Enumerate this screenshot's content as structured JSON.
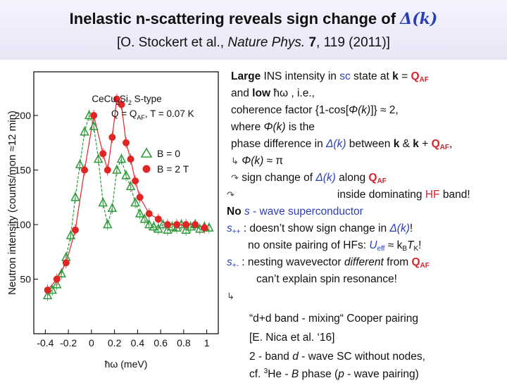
{
  "header": {
    "title_main": "Inelastic n-scattering reveals sign change of ",
    "title_delta": "Δ",
    "title_paren_open": "(",
    "title_k": "k",
    "title_paren_close": ")",
    "subtitle_pre": "[O. Stockert et al., ",
    "subtitle_journal": "Nature Phys.",
    "subtitle_volume": "7",
    "subtitle_post": ", 119 (2011)]"
  },
  "chart_data": {
    "type": "scatter",
    "title": "CeCu2Si2 S-type",
    "subtitle": "Q = QAF, T = 0.07 K",
    "legend_line1": "CeCu",
    "legend_sub1": "2",
    "legend_line2": "Si",
    "legend_sub2": "2",
    "legend_line3": " S-type",
    "legend_q": "Q = Q",
    "legend_af": "AF",
    "legend_t": ", T = 0.07 K",
    "xlabel": "ħω (meV)",
    "ylabel": "Neutron intensity (counts/mon ≈12 min)",
    "xlim": [
      -0.5,
      1.1
    ],
    "ylim": [
      0,
      240
    ],
    "xticks": [
      -0.4,
      -0.2,
      0,
      0.2,
      0.4,
      0.6,
      0.8,
      1
    ],
    "xtick_labels": [
      "-0.4",
      "-0.2",
      "0",
      "0.2",
      "0.4",
      "0.6",
      "0.8",
      "1"
    ],
    "yticks": [
      50,
      100,
      150,
      200
    ],
    "ytick_labels": [
      "50",
      "100",
      "150",
      "200"
    ],
    "series": [
      {
        "name": "B = 0",
        "marker": "triangle",
        "color": "#2e9a3b",
        "x": [
          -0.38,
          -0.34,
          -0.3,
          -0.26,
          -0.22,
          -0.18,
          -0.14,
          -0.1,
          -0.06,
          -0.02,
          0.02,
          0.06,
          0.1,
          0.14,
          0.18,
          0.22,
          0.26,
          0.3,
          0.34,
          0.38,
          0.42,
          0.46,
          0.5,
          0.54,
          0.58,
          0.62,
          0.66,
          0.7,
          0.74,
          0.78,
          0.82,
          0.86,
          0.9,
          0.94,
          0.98,
          1.02
        ],
        "y": [
          35,
          40,
          45,
          55,
          70,
          90,
          125,
          155,
          185,
          200,
          190,
          160,
          120,
          100,
          115,
          150,
          160,
          145,
          135,
          120,
          110,
          105,
          100,
          98,
          96,
          100,
          95,
          98,
          97,
          100,
          95,
          98,
          100,
          96,
          98,
          97
        ]
      },
      {
        "name": "B = 2 T",
        "marker": "circle",
        "color": "#e02525",
        "x": [
          -0.38,
          -0.3,
          -0.22,
          -0.14,
          -0.06,
          0.02,
          0.1,
          0.14,
          0.18,
          0.22,
          0.26,
          0.3,
          0.34,
          0.38,
          0.42,
          0.5,
          0.58,
          0.66,
          0.74,
          0.82,
          0.9,
          0.98
        ],
        "y": [
          40,
          50,
          65,
          95,
          150,
          200,
          165,
          150,
          180,
          215,
          210,
          175,
          160,
          140,
          125,
          110,
          105,
          100,
          100,
          100,
          100,
          97
        ]
      }
    ]
  },
  "text": {
    "l1_large": "Large",
    "l1_a": " INS intensity in ",
    "l1_sc": "sc",
    "l1_b": " state at ",
    "l1_k": "k",
    "l1_c": " = ",
    "l1_q": "Q",
    "l1_af": "AF",
    "l2_a": "and ",
    "l2_low": "low",
    "l2_b": " ħω , i.e.,",
    "l3_a": "coherence factor {1-cos[",
    "l3_phi": "Φ(k)",
    "l3_b": "]} ≈ 2,",
    "l4_a": "where ",
    "l4_phi": "Φ(k)",
    "l4_b": " is the",
    "l5_a": "phase difference in ",
    "l5_d": "Δ(k)",
    "l5_b": " between ",
    "l5_k1": "k",
    "l5_c": " & ",
    "l5_k2": "k",
    "l5_d2": " + ",
    "l5_q": "Q",
    "l5_af": "AF",
    "l5_e": ",",
    "l6_arrow": "↳",
    "l6_phi": "Φ(k)",
    "l6_b": " ≈ π",
    "l7_arrow": "↷",
    "l7_a": " sign change of ",
    "l7_d": "Δ(k)",
    "l7_b": " along ",
    "l7_q": "Q",
    "l7_af": "AF",
    "l8_arrow": "↷",
    "l8_a": "inside dominating ",
    "l8_hf": "HF",
    "l8_b": " band!",
    "l9_no": "No",
    "l9_a": " ",
    "l9_s": "s",
    "l9_b": " - wave superconductor",
    "l10_s": "s",
    "l10_pp": "++",
    "l10_a": " : doesn’t show sign change in ",
    "l10_d": "Δ(k)",
    "l10_b": "!",
    "l11_a": "no onsite pairing of HFs: ",
    "l11_u": "U",
    "l11_eff": "eff",
    "l11_b": " ≈ k",
    "l11_bsub": "B",
    "l11_t": "T",
    "l11_k": "K",
    "l11_c": "!",
    "l12_s": "s",
    "l12_pm": "+-",
    "l12_a": "  : nesting wavevector ",
    "l12_diff": "different",
    "l12_b": " from ",
    "l12_q": "Q",
    "l12_af": "AF",
    "l13": "can’t explain spin resonance!",
    "l14_arrow": "↳",
    "l15": "“d+d band - mixing“ Cooper pairing",
    "l16": "[E. Nica et al. ‘16]",
    "l17_a": "2 - band ",
    "l17_d": "d",
    "l17_b": " - wave SC without nodes,",
    "l18_a": "cf. ",
    "l18_sup": "3",
    "l18_he": "He - ",
    "l18_B": "B",
    "l18_b": " phase (",
    "l18_p": "p",
    "l18_c": " - wave pairing)"
  }
}
